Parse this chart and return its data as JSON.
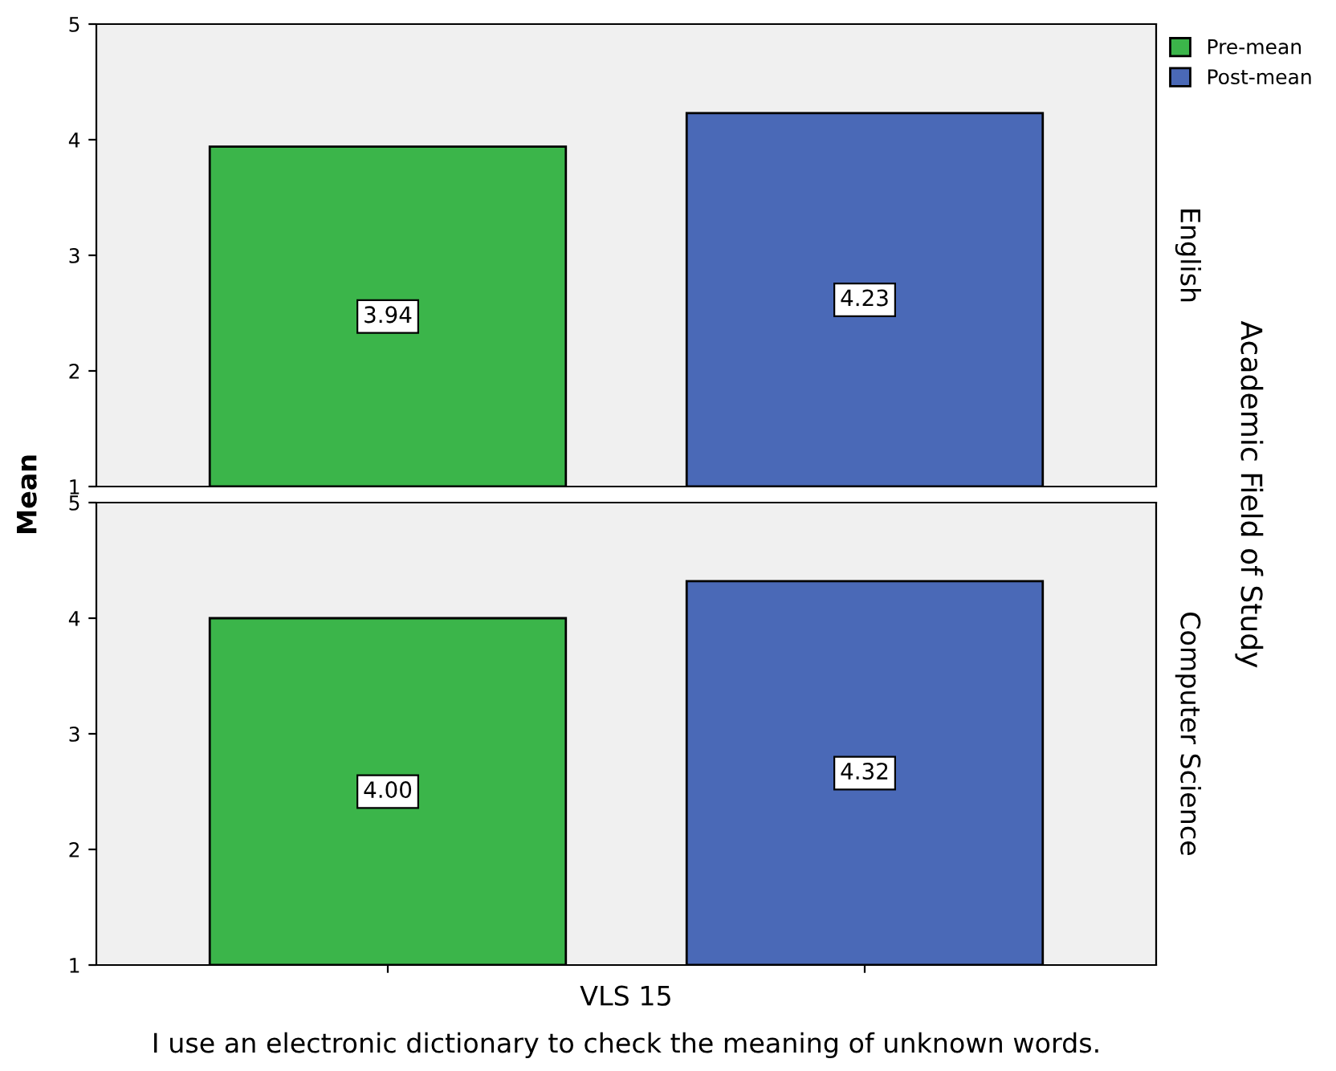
{
  "chart_data": [
    {
      "type": "bar",
      "categories": [
        null
      ],
      "ylabel": "Mean",
      "y2label": "English",
      "annotations": [
        "Academic Field of Study"
      ],
      "series": [
        {
          "name": "Pre-mean",
          "color": "#3bb54a",
          "values": [
            3.94
          ],
          "value_labels": [
            "3.94"
          ]
        },
        {
          "name": "Post-mean",
          "color": "#4a69b7",
          "values": [
            4.23
          ],
          "value_labels": [
            "4.23"
          ]
        }
      ],
      "ylim": [
        1,
        5
      ],
      "yticks": [
        1,
        2,
        3,
        4,
        5
      ],
      "legend": "top right",
      "tick_labels": "y",
      "grid": false
    },
    {
      "type": "bar",
      "categories": [
        null
      ],
      "y2label": "Computer Science",
      "xlabel": "VLS 15",
      "annotations": [
        "I use an electronic dictionary to check the meaning of unknown words."
      ],
      "series": [
        {
          "color": "#3bb54a",
          "values": [
            4.0
          ],
          "value_labels": [
            "4.00"
          ]
        },
        {
          "color": "#4a69b7",
          "values": [
            4.32
          ],
          "value_labels": [
            "4.32"
          ]
        }
      ],
      "ylim": [
        1,
        5
      ],
      "yticks": [
        1,
        2,
        3,
        4,
        5
      ],
      "grid": false
    }
  ]
}
